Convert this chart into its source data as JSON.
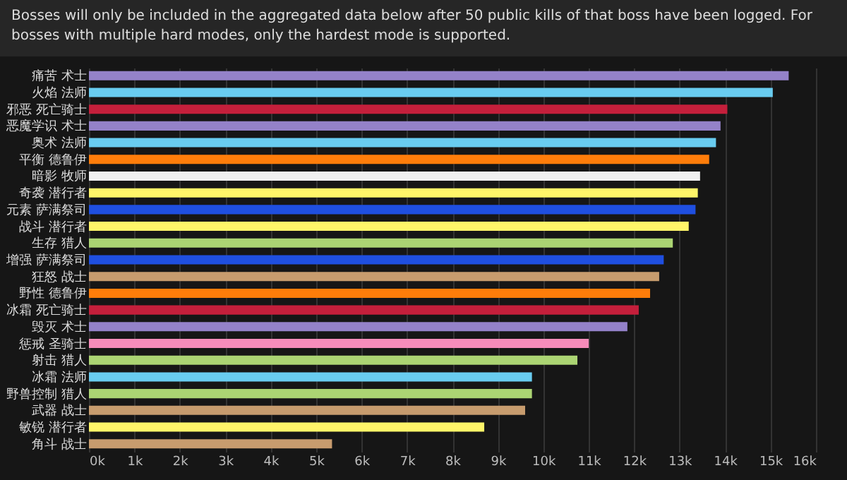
{
  "chart_data": {
    "type": "bar",
    "orientation": "horizontal",
    "annotations": [
      "Bosses will only be included in the aggregated data below after 50 public kills of that boss have been logged. For bosses with multiple hard modes, only the hardest mode is supported."
    ],
    "categories": [
      "痛苦 术士",
      "火焰 法师",
      "邪恶 死亡骑士",
      "恶魔学识 术士",
      "奥术 法师",
      "平衡 德鲁伊",
      "暗影 牧师",
      "奇袭 潜行者",
      "元素 萨满祭司",
      "战斗 潜行者",
      "生存 猎人",
      "增强 萨满祭司",
      "狂怒 战士",
      "野性 德鲁伊",
      "冰霜 死亡骑士",
      "毁灭 术士",
      "惩戒 圣骑士",
      "射击 猎人",
      "冰霜 法师",
      "野兽控制 猎人",
      "武器 战士",
      "敏锐 潜行者",
      "角斗 战士"
    ],
    "values": [
      15400,
      15050,
      14050,
      13900,
      13800,
      13650,
      13450,
      13400,
      13350,
      13200,
      12850,
      12650,
      12550,
      12350,
      12100,
      11850,
      11000,
      10750,
      9750,
      9750,
      9600,
      8700,
      5350
    ],
    "colors": [
      "#9482c9",
      "#69ccf0",
      "#c41f3b",
      "#9482c9",
      "#69ccf0",
      "#ff7d0a",
      "#f0f0f0",
      "#fff569",
      "#1f4fe0",
      "#fff569",
      "#abd473",
      "#1f4fe0",
      "#c79c6e",
      "#ff7d0a",
      "#c41f3b",
      "#9482c9",
      "#f58cba",
      "#abd473",
      "#69ccf0",
      "#abd473",
      "#c79c6e",
      "#fff569",
      "#c79c6e"
    ],
    "xlim": [
      0,
      16000
    ],
    "xticks": [
      {
        "value": 0,
        "label": "0k"
      },
      {
        "value": 1000,
        "label": "1k"
      },
      {
        "value": 2000,
        "label": "2k"
      },
      {
        "value": 3000,
        "label": "3k"
      },
      {
        "value": 4000,
        "label": "4k"
      },
      {
        "value": 5000,
        "label": "5k"
      },
      {
        "value": 6000,
        "label": "6k"
      },
      {
        "value": 7000,
        "label": "7k"
      },
      {
        "value": 8000,
        "label": "8k"
      },
      {
        "value": 9000,
        "label": "9k"
      },
      {
        "value": 10000,
        "label": "10k"
      },
      {
        "value": 11000,
        "label": "11k"
      },
      {
        "value": 12000,
        "label": "12k"
      },
      {
        "value": 13000,
        "label": "13k"
      },
      {
        "value": 14000,
        "label": "14k"
      },
      {
        "value": 15000,
        "label": "15k"
      },
      {
        "value": 16000,
        "label": "16k"
      }
    ],
    "grid": "x"
  }
}
